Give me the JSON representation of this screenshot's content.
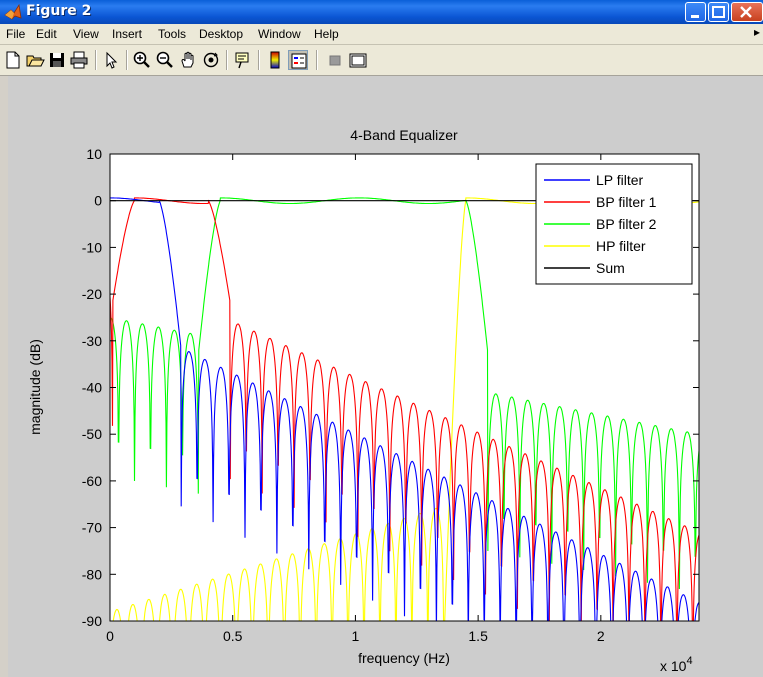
{
  "window": {
    "title": "Figure 2"
  },
  "menu": [
    "File",
    "Edit",
    "View",
    "Insert",
    "Tools",
    "Desktop",
    "Window",
    "Help"
  ],
  "toolbar": {
    "icons": [
      "new-file-icon",
      "open-file-icon",
      "save-icon",
      "print-icon",
      "pointer-icon",
      "zoom-in-icon",
      "zoom-out-icon",
      "pan-hand-icon",
      "rotate-3d-icon",
      "data-cursor-icon",
      "colorbar-icon",
      "legend-icon",
      "hide-plot-tools-icon",
      "show-plot-tools-icon"
    ]
  },
  "chart_data": {
    "type": "line",
    "title": "4-Band Equalizer",
    "xlabel": "frequency (Hz)",
    "ylabel": "magnitude (dB)",
    "x_exponent_label": "x 10",
    "x_exponent_power": "4",
    "xlim": [
      0,
      24000
    ],
    "ylim": [
      -90,
      10
    ],
    "xticks": [
      0,
      5000,
      10000,
      15000,
      20000
    ],
    "xtick_labels": [
      "0",
      "0.5",
      "1",
      "1.5",
      "2"
    ],
    "yticks": [
      10,
      0,
      -10,
      -20,
      -30,
      -40,
      -50,
      -60,
      -70,
      -80,
      -90
    ],
    "ytick_labels": [
      "10",
      "0",
      "-10",
      "-20",
      "-30",
      "-40",
      "-50",
      "-60",
      "-70",
      "-80",
      "-90"
    ],
    "grid": false,
    "legend_position": "top-right",
    "series": [
      {
        "name": "LP filter",
        "color": "#0000ff",
        "band": [
          0,
          2000
        ],
        "stop_peak_start": -24,
        "stop_peak_end": -86,
        "lobe_width": 650
      },
      {
        "name": "BP filter 1",
        "color": "#ff0000",
        "band": [
          1000,
          4000
        ],
        "stop_peak_start": -14,
        "stop_peak_end": -71,
        "lobe_width": 650
      },
      {
        "name": "BP filter 2",
        "color": "#00ff00",
        "band": [
          4500,
          14500
        ],
        "stop_peak_start": -25,
        "stop_peak_end": -50,
        "lobe_width": 650
      },
      {
        "name": "HP filter",
        "color": "#ffff00",
        "band": [
          14500,
          24000
        ],
        "stop_peak_start": -88,
        "stop_peak_end": -48,
        "lobe_width": 650
      },
      {
        "name": "Sum",
        "color": "#000000",
        "band": [
          0,
          24000
        ],
        "stop_peak_start": 0,
        "stop_peak_end": 0,
        "lobe_width": 650
      }
    ]
  }
}
